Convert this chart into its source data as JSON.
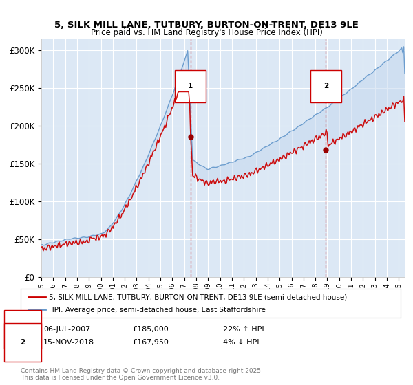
{
  "title1": "5, SILK MILL LANE, TUTBURY, BURTON-ON-TRENT, DE13 9LE",
  "title2": "Price paid vs. HM Land Registry's House Price Index (HPI)",
  "ylabel_ticks": [
    "£0",
    "£50K",
    "£100K",
    "£150K",
    "£200K",
    "£250K",
    "£300K"
  ],
  "ytick_values": [
    0,
    50000,
    100000,
    150000,
    200000,
    250000,
    300000
  ],
  "ylim": [
    0,
    315000
  ],
  "xlim_start": 1995.0,
  "xlim_end": 2025.5,
  "background_color": "#ffffff",
  "plot_bg": "#dce8f5",
  "grid_color": "#ffffff",
  "red_line_color": "#cc0000",
  "blue_line_color": "#6699cc",
  "fill_color": "#c5d8ee",
  "marker1_x": 2007.52,
  "marker1_y": 185000,
  "marker2_x": 2018.88,
  "marker2_y": 167950,
  "legend_line1": "5, SILK MILL LANE, TUTBURY, BURTON-ON-TRENT, DE13 9LE (semi-detached house)",
  "legend_line2": "HPI: Average price, semi-detached house, East Staffordshire",
  "sale1_date": "06-JUL-2007",
  "sale1_price": "£185,000",
  "sale1_hpi": "22% ↑ HPI",
  "sale2_date": "15-NOV-2018",
  "sale2_price": "£167,950",
  "sale2_hpi": "4% ↓ HPI",
  "footnote": "Contains HM Land Registry data © Crown copyright and database right 2025.\nThis data is licensed under the Open Government Licence v3.0."
}
